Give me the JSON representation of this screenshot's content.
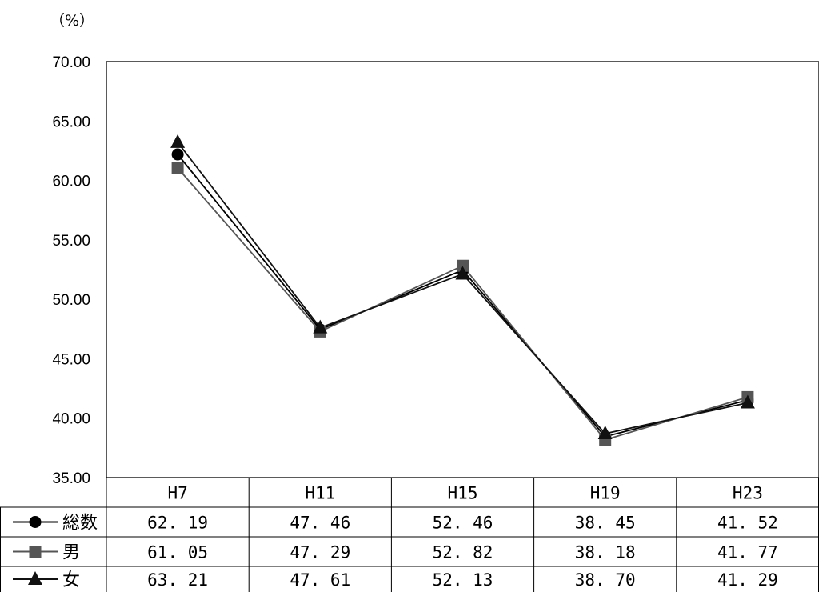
{
  "chart_data": {
    "type": "line",
    "unit_label": "（%）",
    "categories": [
      "H7",
      "H11",
      "H15",
      "H19",
      "H23"
    ],
    "y_ticks": [
      "35.00",
      "40.00",
      "45.00",
      "50.00",
      "55.00",
      "60.00",
      "65.00",
      "70.00"
    ],
    "ylim": [
      35,
      70
    ],
    "grid": false,
    "legend_placement": "data-table-left",
    "series": [
      {
        "name": "総数",
        "marker": "circle",
        "color": "#000000",
        "values": [
          62.19,
          47.46,
          52.46,
          38.45,
          41.52
        ],
        "labels": [
          "62. 19",
          "47. 46",
          "52. 46",
          "38. 45",
          "41. 52"
        ]
      },
      {
        "name": "男",
        "marker": "square",
        "color": "#555555",
        "values": [
          61.05,
          47.29,
          52.82,
          38.18,
          41.77
        ],
        "labels": [
          "61. 05",
          "47. 29",
          "52. 82",
          "38. 18",
          "41. 77"
        ]
      },
      {
        "name": "女",
        "marker": "triangle",
        "color": "#111111",
        "values": [
          63.21,
          47.61,
          52.13,
          38.7,
          41.29
        ],
        "labels": [
          "63. 21",
          "47. 61",
          "52. 13",
          "38. 70",
          "41. 29"
        ]
      }
    ]
  }
}
